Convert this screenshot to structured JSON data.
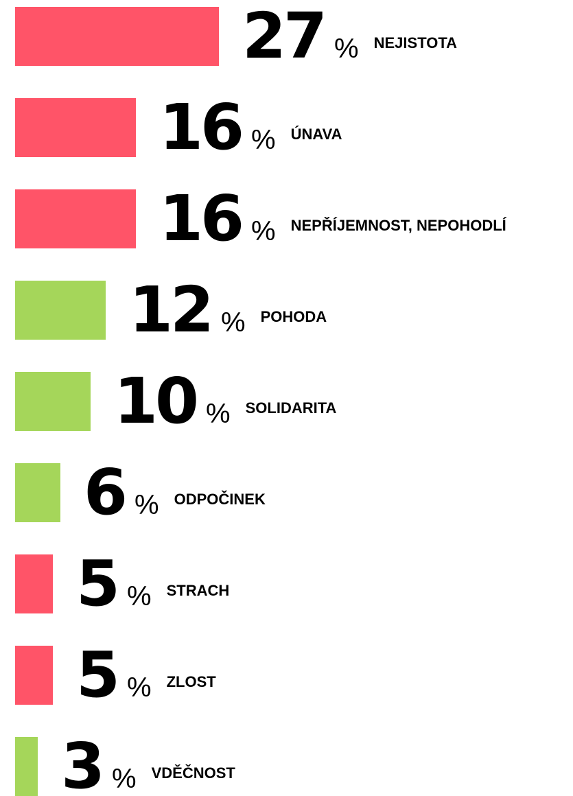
{
  "chart_data": {
    "type": "bar",
    "orientation": "horizontal",
    "categories": [
      "NEJISTOTA",
      "ÚNAVA",
      "NEPŘÍJEMNOST, NEPOHODLÍ",
      "POHODA",
      "SOLIDARITA",
      "ODPOČINEK",
      "STRACH",
      "ZLOST",
      "VDĚČNOST"
    ],
    "values": [
      27,
      16,
      16,
      12,
      10,
      6,
      5,
      5,
      3
    ],
    "unit_label": "%",
    "colors": [
      "#ff5468",
      "#ff5468",
      "#ff5468",
      "#a5d65a",
      "#a5d65a",
      "#a5d65a",
      "#ff5468",
      "#ff5468",
      "#a5d65a"
    ]
  }
}
